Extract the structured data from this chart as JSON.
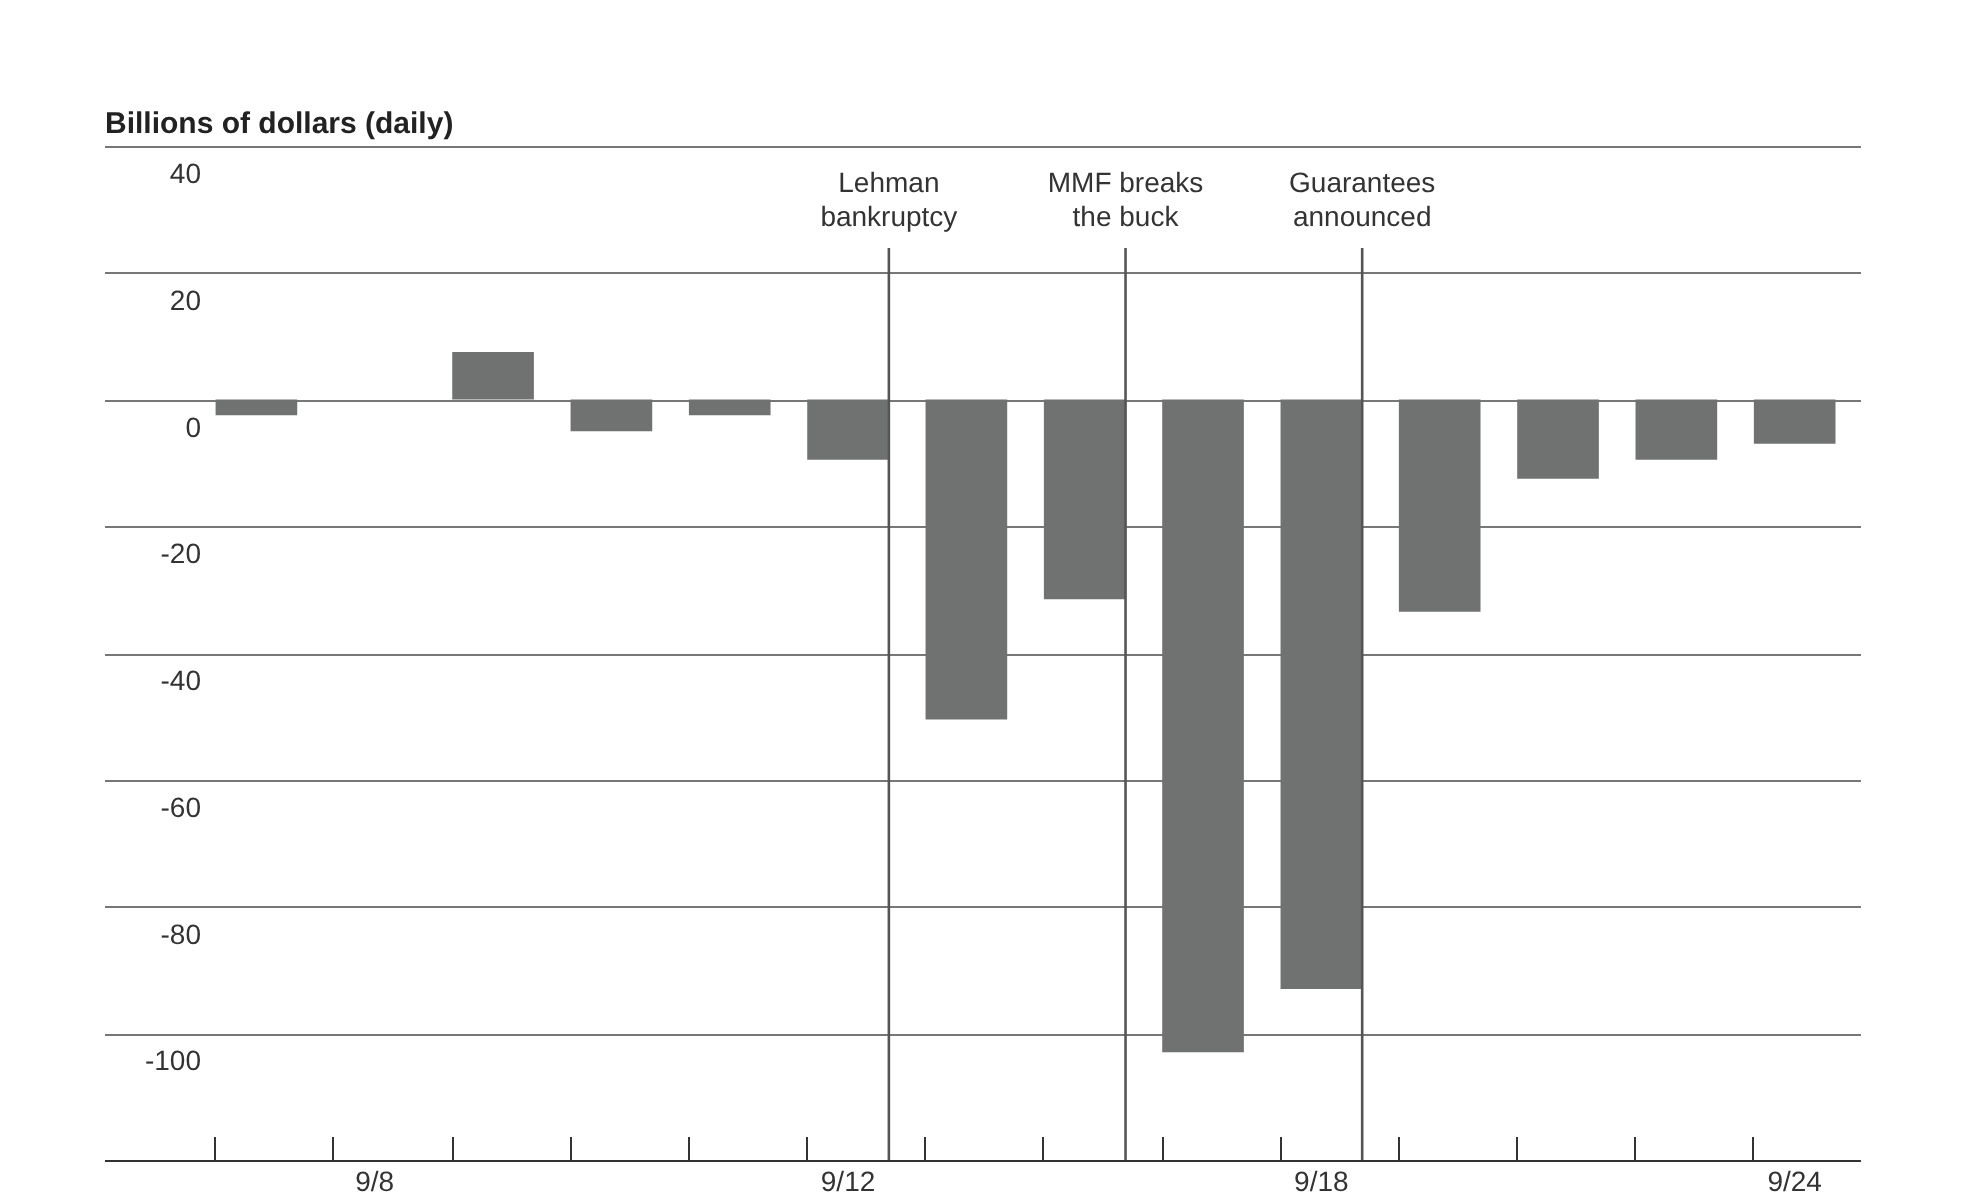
{
  "chart_data": {
    "type": "bar",
    "ylabel": "Billions of dollars (daily)",
    "categories": [
      null,
      "9/8",
      null,
      null,
      null,
      "9/12",
      null,
      null,
      null,
      "9/18",
      null,
      null,
      null,
      "9/24"
    ],
    "series": [
      {
        "color": "#707272",
        "values": [
          -2.5,
          0,
          7.5,
          -5,
          -2.5,
          -9.5,
          -50.5,
          -31.5,
          -103,
          -93,
          -33.5,
          -12.5,
          -9.5,
          -7
        ]
      }
    ],
    "ylim": [
      -120,
      40
    ],
    "yticks": [
      -100,
      -80,
      -60,
      -40,
      -20,
      0,
      20,
      40
    ],
    "grid": "y",
    "annotations": [
      "Lehman\nbankruptcy",
      "MMF breaks\nthe buck",
      "Guarantees\nannounced"
    ]
  }
}
